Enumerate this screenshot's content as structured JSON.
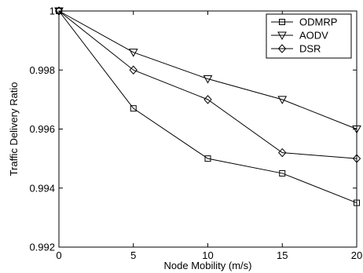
{
  "chart_data": {
    "type": "line",
    "xlabel": "Node Mobility (m/s)",
    "ylabel": "Traffic Delivery Ratio",
    "xlim": [
      0,
      20
    ],
    "ylim": [
      0.992,
      1.0
    ],
    "x_ticks": [
      0,
      5,
      10,
      15,
      20
    ],
    "x_tick_labels": [
      "0",
      "5",
      "10",
      "15",
      "20"
    ],
    "y_ticks": [
      0.992,
      0.994,
      0.996,
      0.998,
      1.0
    ],
    "y_tick_labels": [
      "0.992",
      "0.994",
      "0.996",
      "0.998",
      "1"
    ],
    "grid": false,
    "legend_position": "top-right",
    "x": [
      0,
      5,
      10,
      15,
      20
    ],
    "series": [
      {
        "name": "ODMRP",
        "marker": "square",
        "values": [
          1.0,
          0.9967,
          0.995,
          0.9945,
          0.9935
        ]
      },
      {
        "name": "AODV",
        "marker": "triangle-down",
        "values": [
          1.0,
          0.9986,
          0.9977,
          0.997,
          0.996
        ]
      },
      {
        "name": "DSR",
        "marker": "diamond",
        "values": [
          1.0,
          0.998,
          0.997,
          0.9952,
          0.995
        ]
      }
    ],
    "line_color": "#000000"
  }
}
